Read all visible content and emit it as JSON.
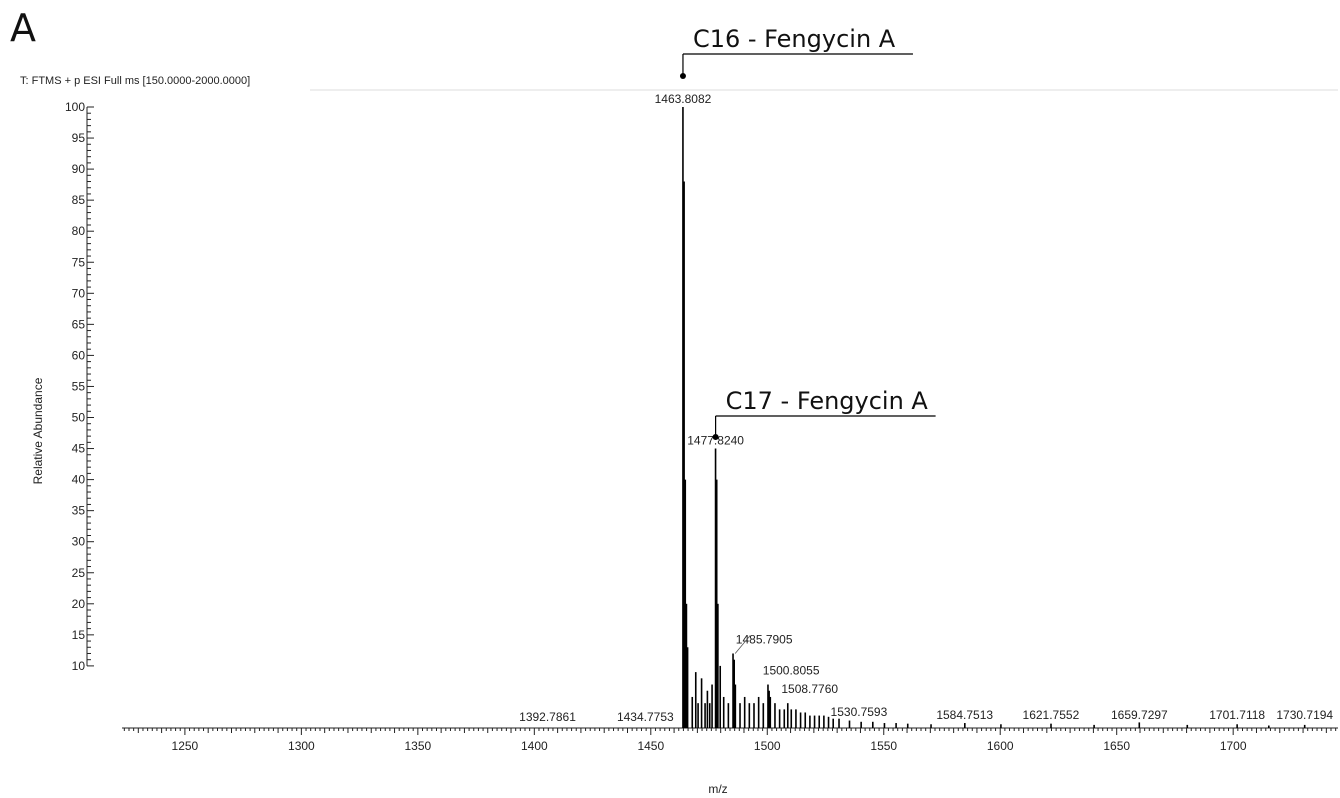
{
  "panel_letter": "A",
  "scan_header": "T: FTMS + p ESI Full ms [150.0000-2000.0000]",
  "chart_data": {
    "type": "line",
    "title": "",
    "xlabel": "m/z",
    "ylabel": "Relative Abundance",
    "xlim": [
      1223,
      1745
    ],
    "ylim": [
      0,
      100
    ],
    "x_ticks": [
      1250,
      1300,
      1350,
      1400,
      1450,
      1500,
      1550,
      1600,
      1650,
      1700
    ],
    "y_ticks": [
      10,
      15,
      20,
      25,
      30,
      35,
      40,
      45,
      50,
      55,
      60,
      65,
      70,
      75,
      80,
      85,
      90,
      95,
      100
    ],
    "series": [
      {
        "x": [
          1463.8,
          1464.3,
          1464.8,
          1465.3,
          1465.8,
          1467.8,
          1469.3,
          1470.3,
          1471.8,
          1473.3,
          1474.3,
          1475.3,
          1476.3,
          1477.8,
          1478.3,
          1478.8,
          1479.8,
          1481.3,
          1483.3,
          1485.3,
          1485.8,
          1486.3,
          1488.3,
          1490.3,
          1492.3,
          1494.3,
          1496.3,
          1498.3,
          1500.3,
          1500.8,
          1501.3,
          1503.3,
          1505.3,
          1507.3,
          1508.8,
          1510.3,
          1512.3,
          1514.3,
          1516.3,
          1518.3,
          1520.3,
          1522.3,
          1524.3,
          1526.3,
          1528.3,
          1530.8,
          1535.3,
          1540.3,
          1545.3,
          1550.3,
          1555.3,
          1560.3,
          1570.3,
          1584.8,
          1600.3,
          1621.8,
          1640.3,
          1659.7,
          1680.3,
          1701.7,
          1715.3,
          1730.7
        ],
        "y": [
          100,
          88,
          40,
          20,
          13,
          5,
          9,
          4,
          8,
          4,
          6,
          4,
          7,
          45,
          40,
          20,
          10,
          5,
          4,
          12,
          11,
          7,
          4,
          5,
          4,
          4,
          5,
          4,
          7,
          6,
          5,
          4,
          3,
          3,
          4,
          3,
          3,
          2.5,
          2.5,
          2,
          2,
          2,
          2,
          1.8,
          1.5,
          1.5,
          1.2,
          1,
          1,
          0.8,
          0.8,
          0.7,
          0.6,
          0.8,
          0.6,
          0.7,
          0.5,
          0.9,
          0.5,
          0.6,
          0.4,
          0.5
        ]
      }
    ],
    "peak_labels": [
      {
        "label": "1392.7861",
        "x": 1392.7861,
        "y": 0.2
      },
      {
        "label": "1434.7753",
        "x": 1434.7753,
        "y": 0.2
      },
      {
        "label": "1463.8082",
        "x": 1463.8082,
        "y": 100
      },
      {
        "label": "1477.8240",
        "x": 1477.824,
        "y": 45
      },
      {
        "label": "1485.7905",
        "x": 1485.7905,
        "y": 12
      },
      {
        "label": "1500.8055",
        "x": 1500.8055,
        "y": 7
      },
      {
        "label": "1508.7760",
        "x": 1508.776,
        "y": 4
      },
      {
        "label": "1530.7593",
        "x": 1530.7593,
        "y": 1.5
      },
      {
        "label": "1584.7513",
        "x": 1584.7513,
        "y": 0.8
      },
      {
        "label": "1621.7552",
        "x": 1621.7552,
        "y": 0.7
      },
      {
        "label": "1659.7297",
        "x": 1659.7297,
        "y": 0.9
      },
      {
        "label": "1701.7118",
        "x": 1701.7118,
        "y": 0.6
      },
      {
        "label": "1730.7194",
        "x": 1730.7194,
        "y": 0.5
      }
    ],
    "annotations": [
      {
        "text": "C16 - Fengycin A",
        "x": 1463.8082
      },
      {
        "text": "C17 - Fengycin A",
        "x": 1477.824
      }
    ]
  }
}
